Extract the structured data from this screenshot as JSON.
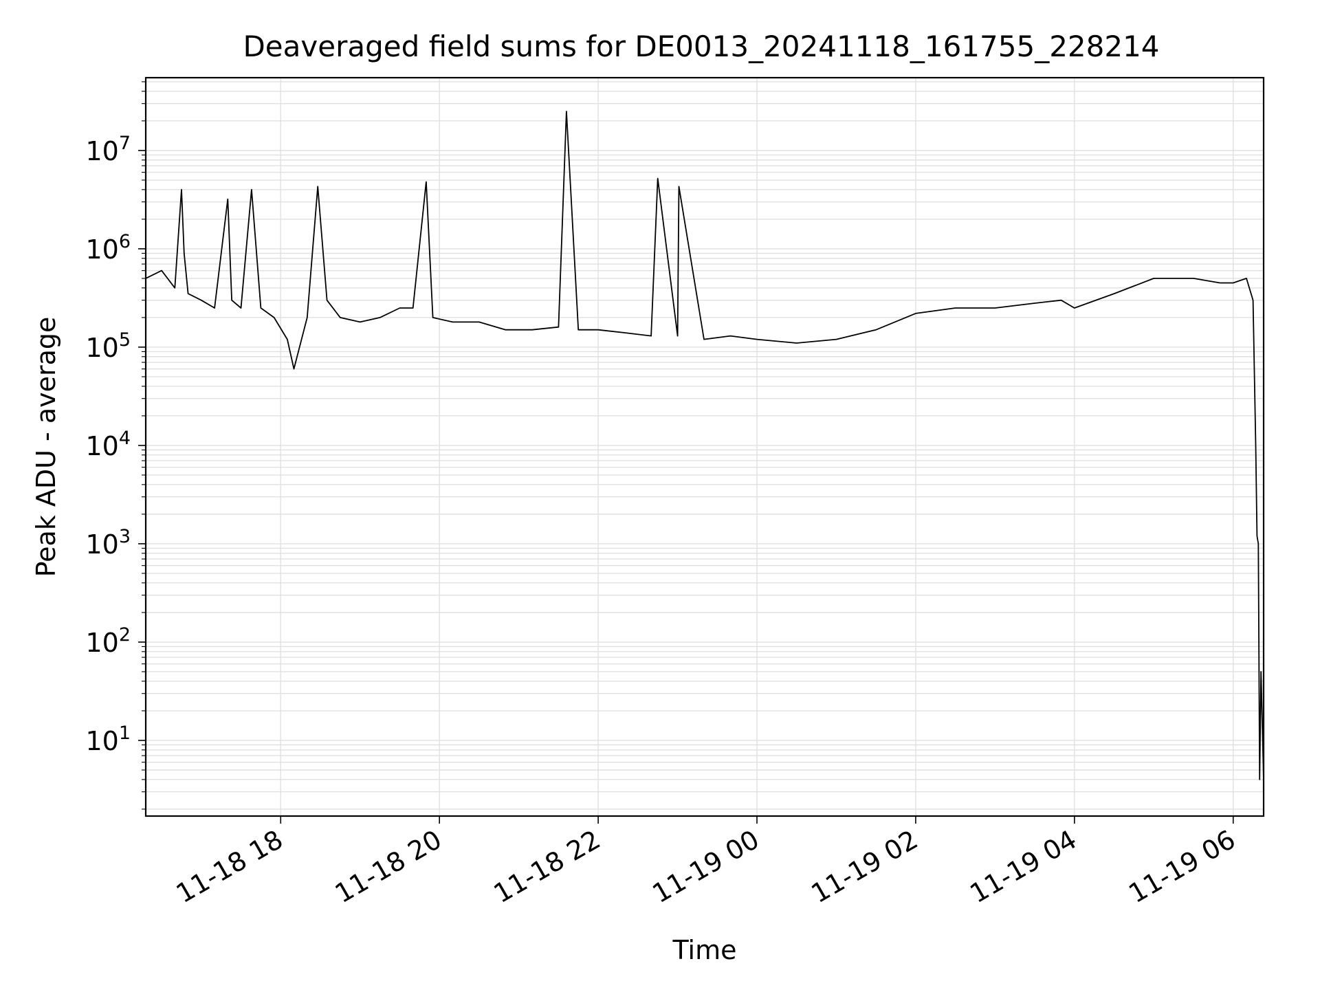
{
  "chart_data": {
    "type": "line",
    "title": "Deaveraged field sums for DE0013_20241118_161755_228214",
    "xlabel": "Time",
    "ylabel": "Peak ADU - average",
    "yscale": "log",
    "xlim": [
      "2024-11-18 16:18",
      "2024-11-19 06:23"
    ],
    "ylim": [
      1.7,
      55000000
    ],
    "grid": true,
    "line_color": "#000000",
    "x_ticks": [
      {
        "value": "2024-11-18 18:00",
        "label": "11-18 18"
      },
      {
        "value": "2024-11-18 20:00",
        "label": "11-18 20"
      },
      {
        "value": "2024-11-18 22:00",
        "label": "11-18 22"
      },
      {
        "value": "2024-11-19 00:00",
        "label": "11-19 00"
      },
      {
        "value": "2024-11-19 02:00",
        "label": "11-19 02"
      },
      {
        "value": "2024-11-19 04:00",
        "label": "11-19 04"
      },
      {
        "value": "2024-11-19 06:00",
        "label": "11-19 06"
      }
    ],
    "y_ticks": [
      {
        "value": 10,
        "base": "10",
        "exp": "1"
      },
      {
        "value": 100,
        "base": "10",
        "exp": "2"
      },
      {
        "value": 1000,
        "base": "10",
        "exp": "3"
      },
      {
        "value": 10000,
        "base": "10",
        "exp": "4"
      },
      {
        "value": 100000,
        "base": "10",
        "exp": "5"
      },
      {
        "value": 1000000,
        "base": "10",
        "exp": "6"
      },
      {
        "value": 10000000,
        "base": "10",
        "exp": "7"
      }
    ],
    "series": [
      {
        "x": [
          "2024-11-18 16:18",
          "2024-11-18 16:30",
          "2024-11-18 16:40",
          "2024-11-18 16:45",
          "2024-11-18 16:47",
          "2024-11-18 16:50",
          "2024-11-18 17:00",
          "2024-11-18 17:10",
          "2024-11-18 17:20",
          "2024-11-18 17:23",
          "2024-11-18 17:30",
          "2024-11-18 17:38",
          "2024-11-18 17:45",
          "2024-11-18 17:55",
          "2024-11-18 18:05",
          "2024-11-18 18:10",
          "2024-11-18 18:20",
          "2024-11-18 18:28",
          "2024-11-18 18:35",
          "2024-11-18 18:45",
          "2024-11-18 19:00",
          "2024-11-18 19:15",
          "2024-11-18 19:30",
          "2024-11-18 19:40",
          "2024-11-18 19:50",
          "2024-11-18 19:55",
          "2024-11-18 20:10",
          "2024-11-18 20:30",
          "2024-11-18 20:50",
          "2024-11-18 21:10",
          "2024-11-18 21:30",
          "2024-11-18 21:36",
          "2024-11-18 21:45",
          "2024-11-18 22:00",
          "2024-11-18 22:20",
          "2024-11-18 22:40",
          "2024-11-18 22:45",
          "2024-11-18 23:00",
          "2024-11-18 23:01",
          "2024-11-18 23:20",
          "2024-11-18 23:40",
          "2024-11-19 00:00",
          "2024-11-19 00:30",
          "2024-11-19 01:00",
          "2024-11-19 01:30",
          "2024-11-19 02:00",
          "2024-11-19 02:30",
          "2024-11-19 03:00",
          "2024-11-19 03:30",
          "2024-11-19 03:50",
          "2024-11-19 04:00",
          "2024-11-19 04:30",
          "2024-11-19 05:00",
          "2024-11-19 05:30",
          "2024-11-19 05:50",
          "2024-11-19 06:00",
          "2024-11-19 06:10",
          "2024-11-19 06:15",
          "2024-11-19 06:17",
          "2024-11-19 06:18",
          "2024-11-19 06:19",
          "2024-11-19 06:20",
          "2024-11-19 06:21",
          "2024-11-19 06:23"
        ],
        "y": [
          500000,
          600000,
          400000,
          4000000,
          900000,
          350000,
          300000,
          250000,
          3200000,
          300000,
          250000,
          4000000,
          250000,
          200000,
          120000,
          60000,
          200000,
          4300000,
          300000,
          200000,
          180000,
          200000,
          250000,
          250000,
          4800000,
          200000,
          180000,
          180000,
          150000,
          150000,
          160000,
          25000000,
          150000,
          150000,
          140000,
          130000,
          5200000,
          130000,
          4300000,
          120000,
          130000,
          120000,
          110000,
          120000,
          150000,
          220000,
          250000,
          250000,
          280000,
          300000,
          250000,
          350000,
          500000,
          500000,
          450000,
          450000,
          500000,
          300000,
          10000,
          1200,
          1000,
          4,
          50,
          4
        ]
      }
    ]
  }
}
